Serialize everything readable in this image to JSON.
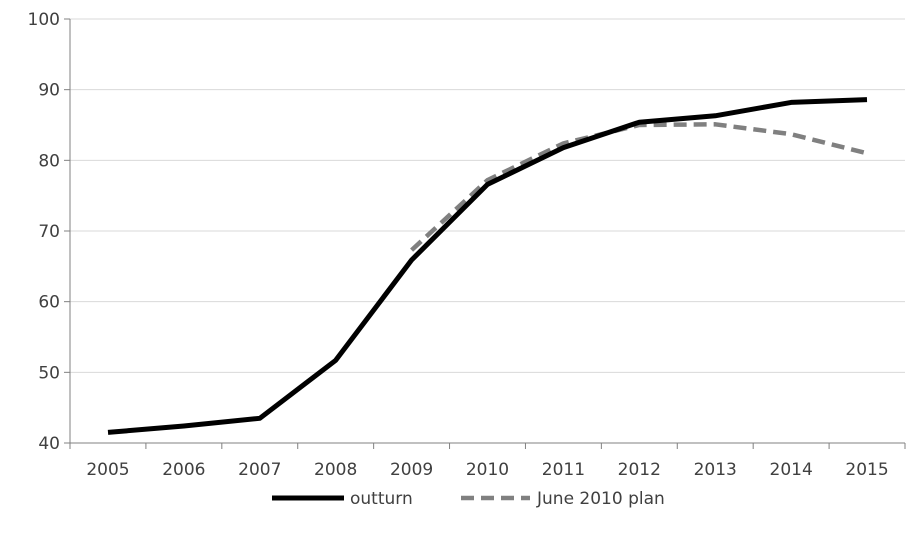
{
  "chart_data": {
    "type": "line",
    "title": "",
    "xlabel": "",
    "ylabel": "",
    "categories": [
      "2005",
      "2006",
      "2007",
      "2008",
      "2009",
      "2010",
      "2011",
      "2012",
      "2013",
      "2014",
      "2015"
    ],
    "ylim": [
      40,
      100
    ],
    "yticks": [
      "40",
      "50",
      "60",
      "70",
      "80",
      "90",
      "100"
    ],
    "grid": "horizontal",
    "legend_position": "bottom",
    "series": [
      {
        "name": "outturn",
        "color": "#000000",
        "style": "solid",
        "values": [
          41.5,
          42.4,
          43.5,
          51.7,
          65.9,
          76.6,
          81.8,
          85.4,
          86.3,
          88.2,
          88.6
        ]
      },
      {
        "name": "June 2010 plan",
        "color": "#808080",
        "style": "dashed",
        "values": [
          null,
          null,
          null,
          null,
          67.3,
          77.2,
          82.4,
          85.0,
          85.1,
          83.7,
          81.0
        ]
      }
    ]
  }
}
